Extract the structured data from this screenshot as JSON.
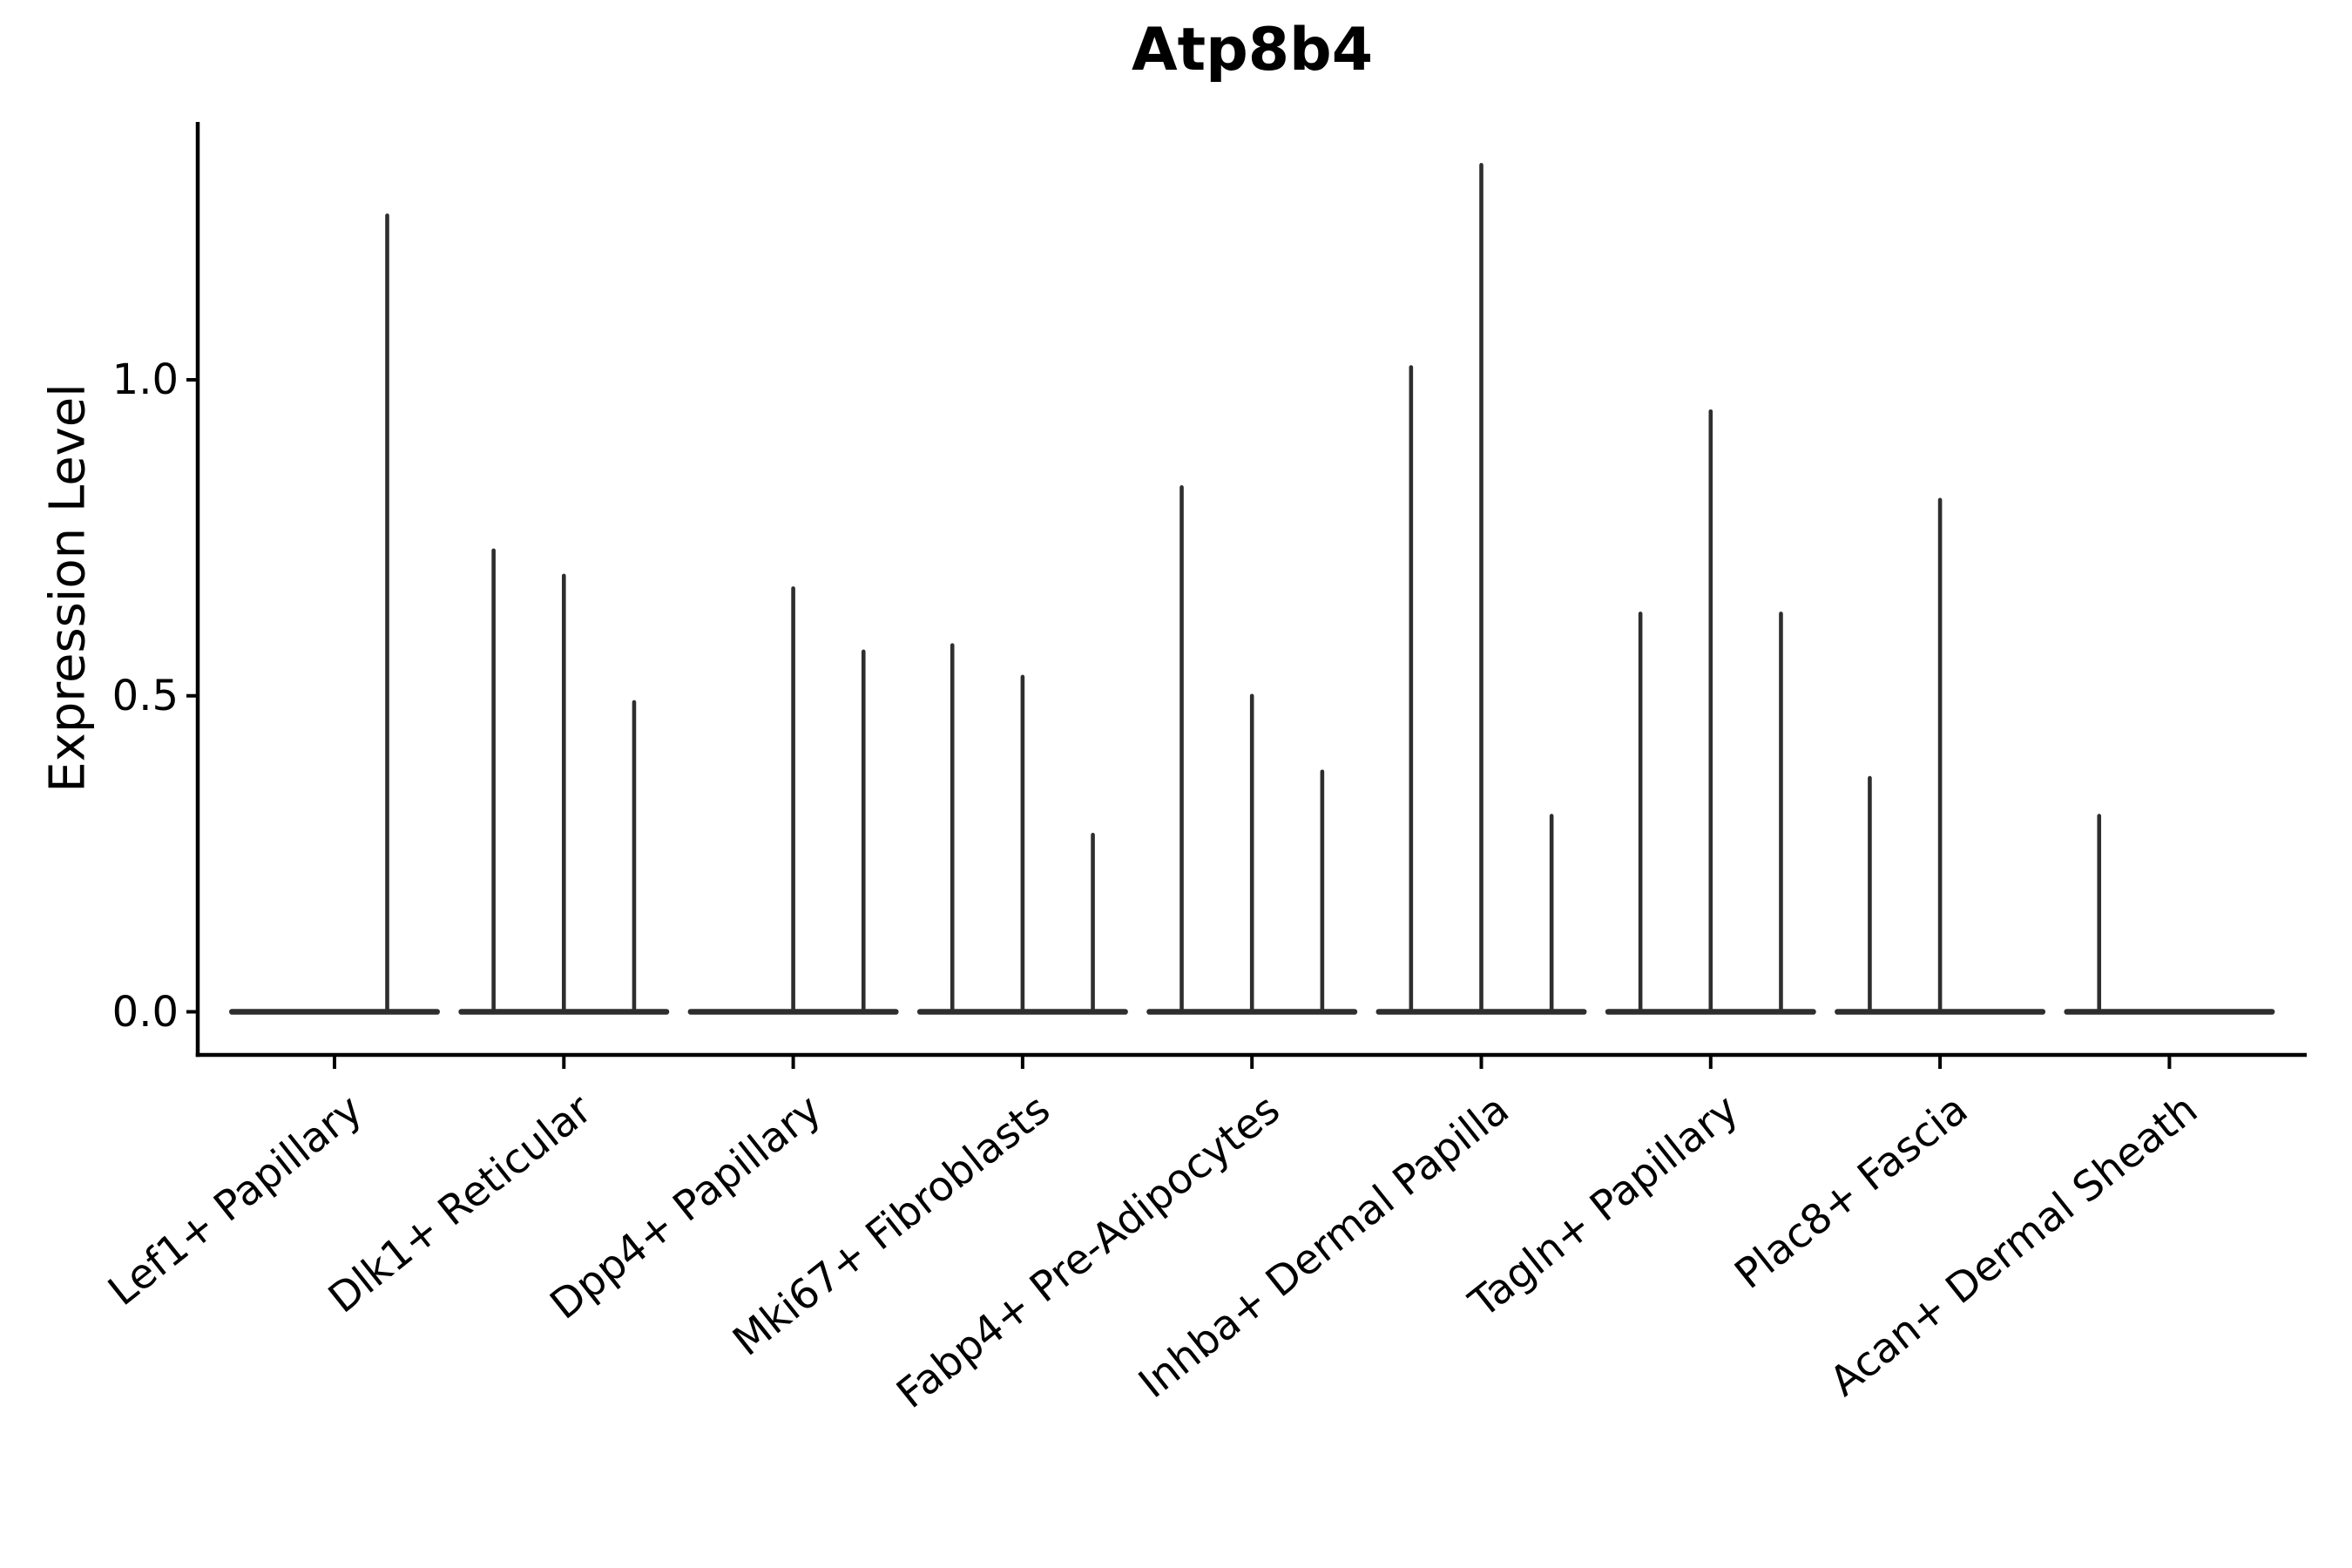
{
  "figure": {
    "background": "#ffffff",
    "title": "Atp8b4"
  },
  "chart_data": {
    "type": "violin",
    "title": "Atp8b4",
    "subtitle": "",
    "xlabel": "",
    "ylabel": "Expression Level",
    "categories": [
      "Lef1+ Papillary",
      "Dlk1+ Reticular",
      "Dpp4+ Papillary",
      "Mki67+ Fibroblasts",
      "Fabp4+ Pre-Adipocytes",
      "Inhba+ Dermal Papilla",
      "Tagln+ Papillary",
      "Plac8+ Fascia",
      "Acan+ Dermal Sheath"
    ],
    "series": [
      {
        "category": "Lef1+ Papillary",
        "violin_maxima": [
          0.0,
          1.26
        ]
      },
      {
        "category": "Dlk1+ Reticular",
        "violin_maxima": [
          0.73,
          0.69,
          0.49
        ]
      },
      {
        "category": "Dpp4+ Papillary",
        "violin_maxima": [
          0.0,
          0.67,
          0.57
        ]
      },
      {
        "category": "Mki67+ Fibroblasts",
        "violin_maxima": [
          0.58,
          0.53,
          0.28
        ]
      },
      {
        "category": "Fabp4+ Pre-Adipocytes",
        "violin_maxima": [
          0.83,
          0.5,
          0.38
        ]
      },
      {
        "category": "Inhba+ Dermal Papilla",
        "violin_maxima": [
          1.02,
          1.34,
          0.31
        ]
      },
      {
        "category": "Tagln+ Papillary",
        "violin_maxima": [
          0.63,
          0.95,
          0.63
        ]
      },
      {
        "category": "Plac8+ Fascia",
        "violin_maxima": [
          0.37,
          0.81,
          0.0
        ]
      },
      {
        "category": "Acan+ Dermal Sheath",
        "violin_maxima": [
          0.31,
          0.0,
          0.0
        ]
      }
    ],
    "violin_shape_note": "Each violin's density is concentrated at 0 (flat horizontal body) with a thin vertical tail rising to its maximum expression value; violins with max 0 are flat lines only.",
    "ytick_values": [
      0.0,
      0.5,
      1.0
    ],
    "ytick_labels": [
      "0.0",
      "0.5",
      "1.0"
    ],
    "ylim": [
      -0.07,
      1.41
    ],
    "grid": false,
    "legend": null,
    "layout_hints": {
      "x_tick_rotation_deg": 38.5,
      "violin_color": "#2e2e2e",
      "axis_color": "#000000"
    }
  }
}
